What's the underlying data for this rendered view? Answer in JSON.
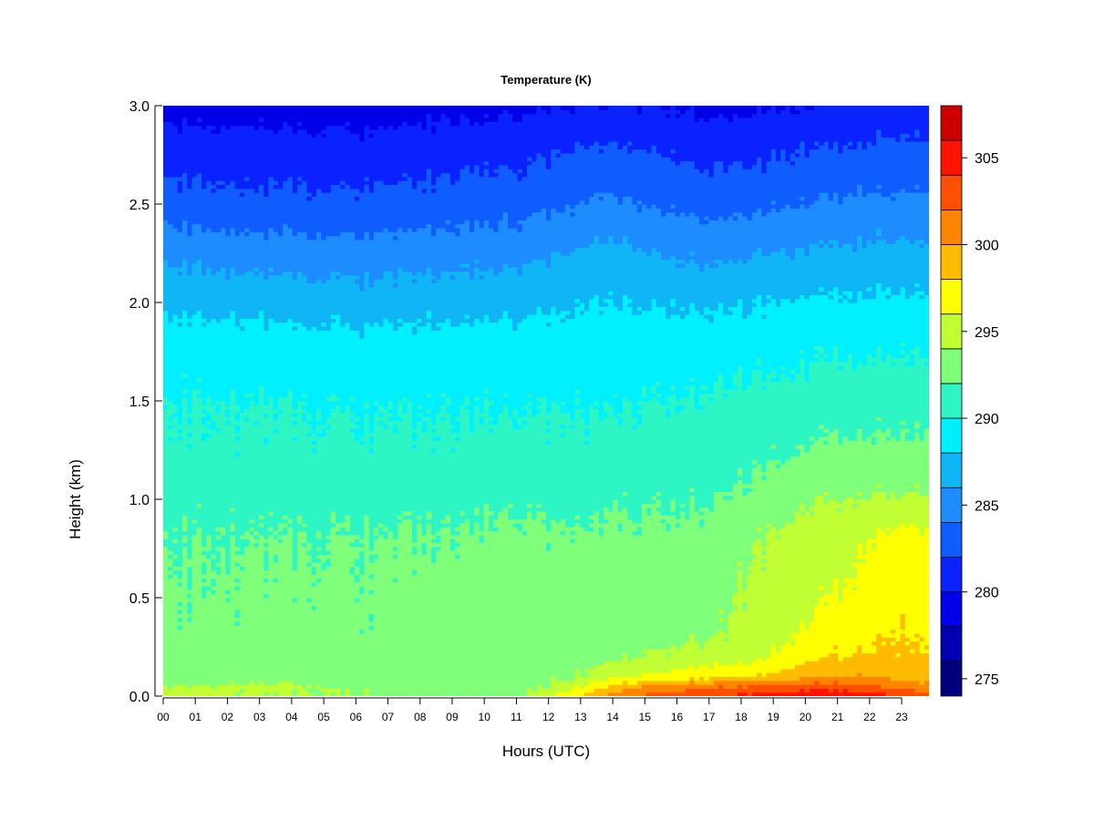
{
  "chart_data": {
    "type": "heatmap",
    "title": "Temperature (K)",
    "xlabel": "Hours (UTC)",
    "ylabel": "Height (km)",
    "x_ticks": [
      "00",
      "01",
      "02",
      "03",
      "04",
      "05",
      "06",
      "07",
      "08",
      "09",
      "10",
      "11",
      "12",
      "13",
      "14",
      "15",
      "16",
      "17",
      "18",
      "19",
      "20",
      "21",
      "22",
      "23"
    ],
    "xlim": [
      0,
      23.85
    ],
    "ylim": [
      0,
      3.0
    ],
    "y_ticks": [
      0.0,
      0.5,
      1.0,
      1.5,
      2.0,
      2.5,
      3.0
    ],
    "y_tick_labels": [
      "0.0",
      "0.5",
      "1.0",
      "1.5",
      "2.0",
      "2.5",
      "3.0"
    ],
    "colorbar": {
      "levels": [
        274,
        276,
        278,
        280,
        282,
        284,
        286,
        288,
        290,
        292,
        294,
        296,
        298,
        300,
        302,
        304,
        306,
        308
      ],
      "colors": [
        "#00007f",
        "#0000b3",
        "#0000e8",
        "#0a22ff",
        "#0f5cff",
        "#1c8cff",
        "#0fb5f5",
        "#00f0ff",
        "#2ef5c4",
        "#7fff7a",
        "#c0ff33",
        "#ffff00",
        "#ffbb00",
        "#ff8400",
        "#ff5000",
        "#ff1300",
        "#cc0000",
        "#800000"
      ],
      "tick_values": [
        275,
        280,
        285,
        290,
        295,
        300,
        305
      ],
      "tick_labels": [
        "275",
        "280",
        "285",
        "290",
        "295",
        "300",
        "305"
      ]
    },
    "profile_heights_km": [
      0.0,
      0.05,
      0.1,
      0.2,
      0.35,
      0.5,
      0.8,
      1.0,
      1.2,
      1.5,
      1.8,
      2.0,
      2.2,
      2.5,
      2.8,
      3.0
    ],
    "profile_times_h": [
      0,
      3,
      6,
      9,
      11,
      12,
      13,
      14,
      15,
      16,
      17,
      18,
      19,
      20,
      21,
      22,
      23,
      23.85
    ],
    "temperature_K": [
      [
        295.0,
        294.0,
        292.8,
        292.5,
        292.3,
        292.3,
        291.9,
        291.5,
        290.5,
        290.0,
        289.0,
        287.5,
        286.0,
        283.0,
        281.0,
        279.0
      ],
      [
        294.0,
        294.5,
        293.0,
        292.6,
        292.4,
        292.4,
        292.0,
        291.5,
        290.5,
        290.0,
        288.8,
        287.3,
        285.5,
        282.5,
        280.8,
        279.0
      ],
      [
        294.0,
        293.5,
        293.0,
        292.5,
        292.3,
        292.3,
        292.0,
        291.5,
        290.5,
        289.8,
        288.6,
        287.0,
        285.3,
        282.5,
        280.5,
        279.0
      ],
      [
        293.5,
        293.0,
        292.7,
        292.5,
        292.5,
        292.7,
        292.2,
        291.5,
        290.5,
        289.8,
        288.8,
        287.2,
        285.6,
        283.0,
        281.0,
        279.3
      ],
      [
        293.5,
        293.3,
        293.0,
        292.8,
        292.6,
        292.8,
        292.4,
        291.8,
        290.8,
        289.9,
        288.8,
        287.4,
        285.8,
        283.2,
        281.2,
        279.5
      ],
      [
        295.5,
        294.0,
        293.3,
        292.9,
        292.7,
        292.6,
        292.3,
        291.3,
        290.6,
        289.8,
        288.7,
        287.6,
        286.2,
        283.5,
        281.5,
        279.8
      ],
      [
        298.5,
        296.0,
        294.0,
        293.0,
        292.8,
        292.6,
        292.3,
        291.3,
        290.5,
        289.8,
        288.8,
        287.8,
        286.8,
        284.0,
        281.8,
        280.0
      ],
      [
        300.5,
        298.5,
        295.5,
        293.5,
        293.0,
        292.7,
        292.4,
        291.8,
        290.8,
        289.9,
        288.9,
        288.0,
        287.0,
        284.5,
        282.0,
        280.2
      ],
      [
        302.5,
        300.0,
        296.5,
        294.0,
        293.0,
        292.8,
        292.4,
        291.8,
        290.9,
        290.0,
        289.0,
        287.8,
        286.5,
        284.0,
        281.8,
        280.0
      ],
      [
        303.5,
        301.0,
        297.0,
        294.5,
        293.3,
        292.9,
        292.5,
        291.9,
        291.0,
        290.2,
        289.1,
        287.8,
        286.2,
        283.6,
        281.5,
        279.8
      ],
      [
        304.0,
        301.5,
        297.5,
        295.0,
        293.5,
        293.0,
        292.6,
        292.0,
        291.2,
        290.3,
        289.2,
        287.8,
        286.0,
        283.5,
        281.3,
        279.6
      ],
      [
        304.5,
        302.0,
        298.0,
        295.2,
        294.5,
        294.3,
        293.5,
        292.4,
        291.5,
        290.5,
        289.2,
        287.9,
        286.2,
        283.5,
        281.2,
        279.5
      ],
      [
        305.0,
        302.5,
        298.5,
        296.0,
        295.2,
        295.0,
        294.3,
        293.0,
        292.0,
        290.6,
        289.3,
        288.0,
        286.5,
        283.8,
        281.5,
        279.8
      ],
      [
        305.5,
        303.0,
        299.5,
        297.5,
        296.0,
        295.5,
        294.8,
        293.6,
        292.3,
        290.8,
        289.4,
        288.2,
        286.7,
        284.0,
        281.8,
        280.0
      ],
      [
        305.5,
        303.0,
        300.0,
        298.0,
        297.0,
        296.0,
        295.0,
        294.0,
        292.6,
        291.0,
        289.5,
        288.3,
        286.8,
        284.2,
        282.0,
        280.2
      ],
      [
        305.0,
        302.5,
        300.0,
        298.3,
        297.6,
        297.0,
        296.0,
        294.2,
        292.7,
        291.2,
        289.6,
        288.4,
        287.0,
        284.4,
        282.2,
        280.5
      ],
      [
        304.0,
        301.5,
        299.5,
        298.5,
        298.0,
        297.6,
        297.0,
        294.4,
        292.8,
        291.3,
        289.7,
        288.5,
        287.2,
        284.6,
        282.5,
        280.8
      ],
      [
        303.0,
        301.0,
        299.0,
        298.3,
        297.8,
        297.4,
        296.6,
        294.4,
        292.8,
        291.3,
        289.7,
        288.5,
        287.0,
        284.5,
        282.3,
        280.5
      ]
    ]
  }
}
